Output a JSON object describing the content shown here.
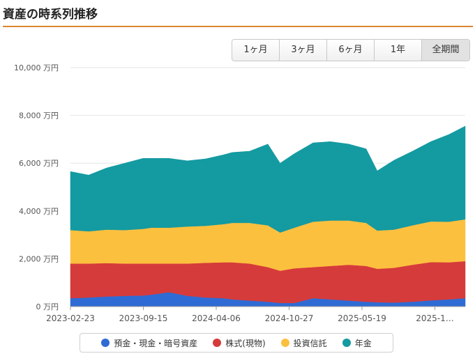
{
  "page": {
    "title": "資産の時系列推移"
  },
  "range_buttons": [
    {
      "label": "1ヶ月",
      "active": false
    },
    {
      "label": "3ヶ月",
      "active": false
    },
    {
      "label": "6ヶ月",
      "active": false
    },
    {
      "label": "1年",
      "active": false
    },
    {
      "label": "全期間",
      "active": true
    }
  ],
  "colors": {
    "deposit": "#2f6bd4",
    "stock": "#d63b3b",
    "fund": "#fcc03f",
    "pension": "#149aa1",
    "grid": "#e6e6e6",
    "rule": "#d8862e"
  },
  "chart_data": {
    "type": "area",
    "stacked": true,
    "x": [
      "2023-02-23",
      "2023-04-10",
      "2023-05-25",
      "2023-07-10",
      "2023-08-25",
      "2023-09-15",
      "2023-10-30",
      "2023-12-15",
      "2024-01-30",
      "2024-03-15",
      "2024-04-06",
      "2024-05-20",
      "2024-07-05",
      "2024-08-05",
      "2024-09-10",
      "2024-10-27",
      "2024-12-10",
      "2025-01-25",
      "2025-03-10",
      "2025-04-07",
      "2025-05-19",
      "2025-07-05",
      "2025-08-20",
      "2025-10-05",
      "2025-11-15"
    ],
    "xticks": [
      "2023-02-23",
      "2023-09-15",
      "2024-04-06",
      "2024-10-27",
      "2025-05-19",
      "2025-1…"
    ],
    "ylim": [
      0,
      10000
    ],
    "yticks": [
      "0 万円",
      "2,000 万円",
      "4,000 万円",
      "6,000 万円",
      "8,000 万円",
      "10,000 万円"
    ],
    "yunit": "万円",
    "grid": true,
    "legend_position": "bottom",
    "series": [
      {
        "name": "預金・現金・暗号資産",
        "color_key": "deposit",
        "values": [
          350,
          380,
          420,
          450,
          460,
          500,
          600,
          450,
          380,
          350,
          300,
          250,
          200,
          150,
          150,
          350,
          300,
          250,
          200,
          180,
          170,
          200,
          260,
          300,
          350
        ]
      },
      {
        "name": "株式(現物)",
        "color_key": "stock",
        "values": [
          1450,
          1420,
          1400,
          1350,
          1340,
          1300,
          1200,
          1350,
          1450,
          1500,
          1550,
          1550,
          1450,
          1350,
          1450,
          1300,
          1400,
          1500,
          1500,
          1400,
          1450,
          1550,
          1600,
          1550,
          1550
        ]
      },
      {
        "name": "投資信託",
        "color_key": "fund",
        "values": [
          1400,
          1350,
          1400,
          1400,
          1450,
          1500,
          1500,
          1550,
          1550,
          1600,
          1650,
          1700,
          1750,
          1600,
          1700,
          1900,
          1900,
          1850,
          1800,
          1600,
          1600,
          1650,
          1700,
          1700,
          1750
        ]
      },
      {
        "name": "年金",
        "color_key": "pension",
        "values": [
          2450,
          2350,
          2580,
          2800,
          2950,
          2900,
          2900,
          2750,
          2800,
          2900,
          2950,
          3000,
          3400,
          2900,
          3100,
          3300,
          3300,
          3200,
          3100,
          2500,
          2900,
          3100,
          3340,
          3650,
          3900
        ]
      }
    ]
  }
}
